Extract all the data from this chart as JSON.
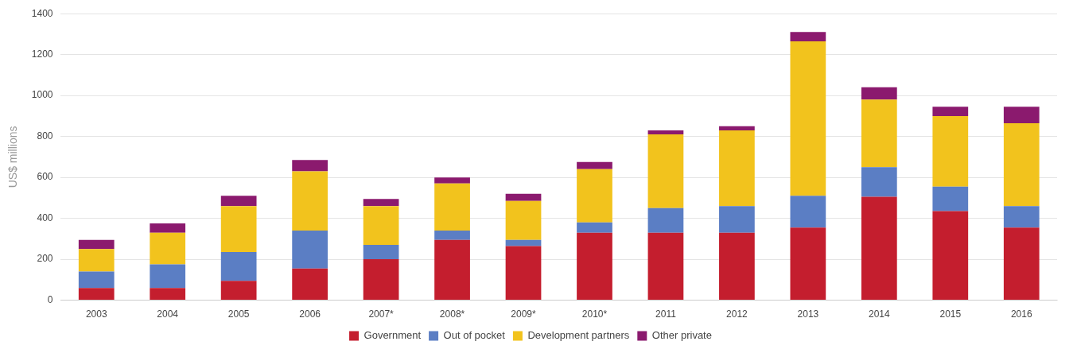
{
  "chart_data": {
    "type": "bar",
    "stacked": true,
    "ylabel": "US$ millions",
    "categories": [
      "2003",
      "2004",
      "2005",
      "2006",
      "2007*",
      "2008*",
      "2009*",
      "2010*",
      "2011",
      "2012",
      "2013",
      "2014",
      "2015",
      "2016"
    ],
    "series": [
      {
        "name": "Government",
        "color": "#c41e2e",
        "values": [
          60,
          60,
          95,
          155,
          200,
          295,
          265,
          330,
          330,
          330,
          355,
          505,
          435,
          355
        ]
      },
      {
        "name": "Out of pocket",
        "color": "#5b7ec4",
        "values": [
          80,
          115,
          140,
          185,
          70,
          45,
          30,
          50,
          120,
          130,
          155,
          145,
          120,
          105
        ]
      },
      {
        "name": "Development partners",
        "color": "#f2c31d",
        "values": [
          110,
          155,
          225,
          290,
          190,
          230,
          190,
          260,
          360,
          370,
          755,
          330,
          345,
          405
        ]
      },
      {
        "name": "Other private",
        "color": "#8b1a6e",
        "values": [
          45,
          45,
          50,
          55,
          35,
          30,
          35,
          35,
          20,
          20,
          45,
          60,
          45,
          80
        ]
      }
    ],
    "ylim": [
      0,
      1400
    ],
    "yticks": [
      0,
      200,
      400,
      600,
      800,
      1000,
      1200,
      1400
    ],
    "grid": "y",
    "legend": "bottom"
  }
}
